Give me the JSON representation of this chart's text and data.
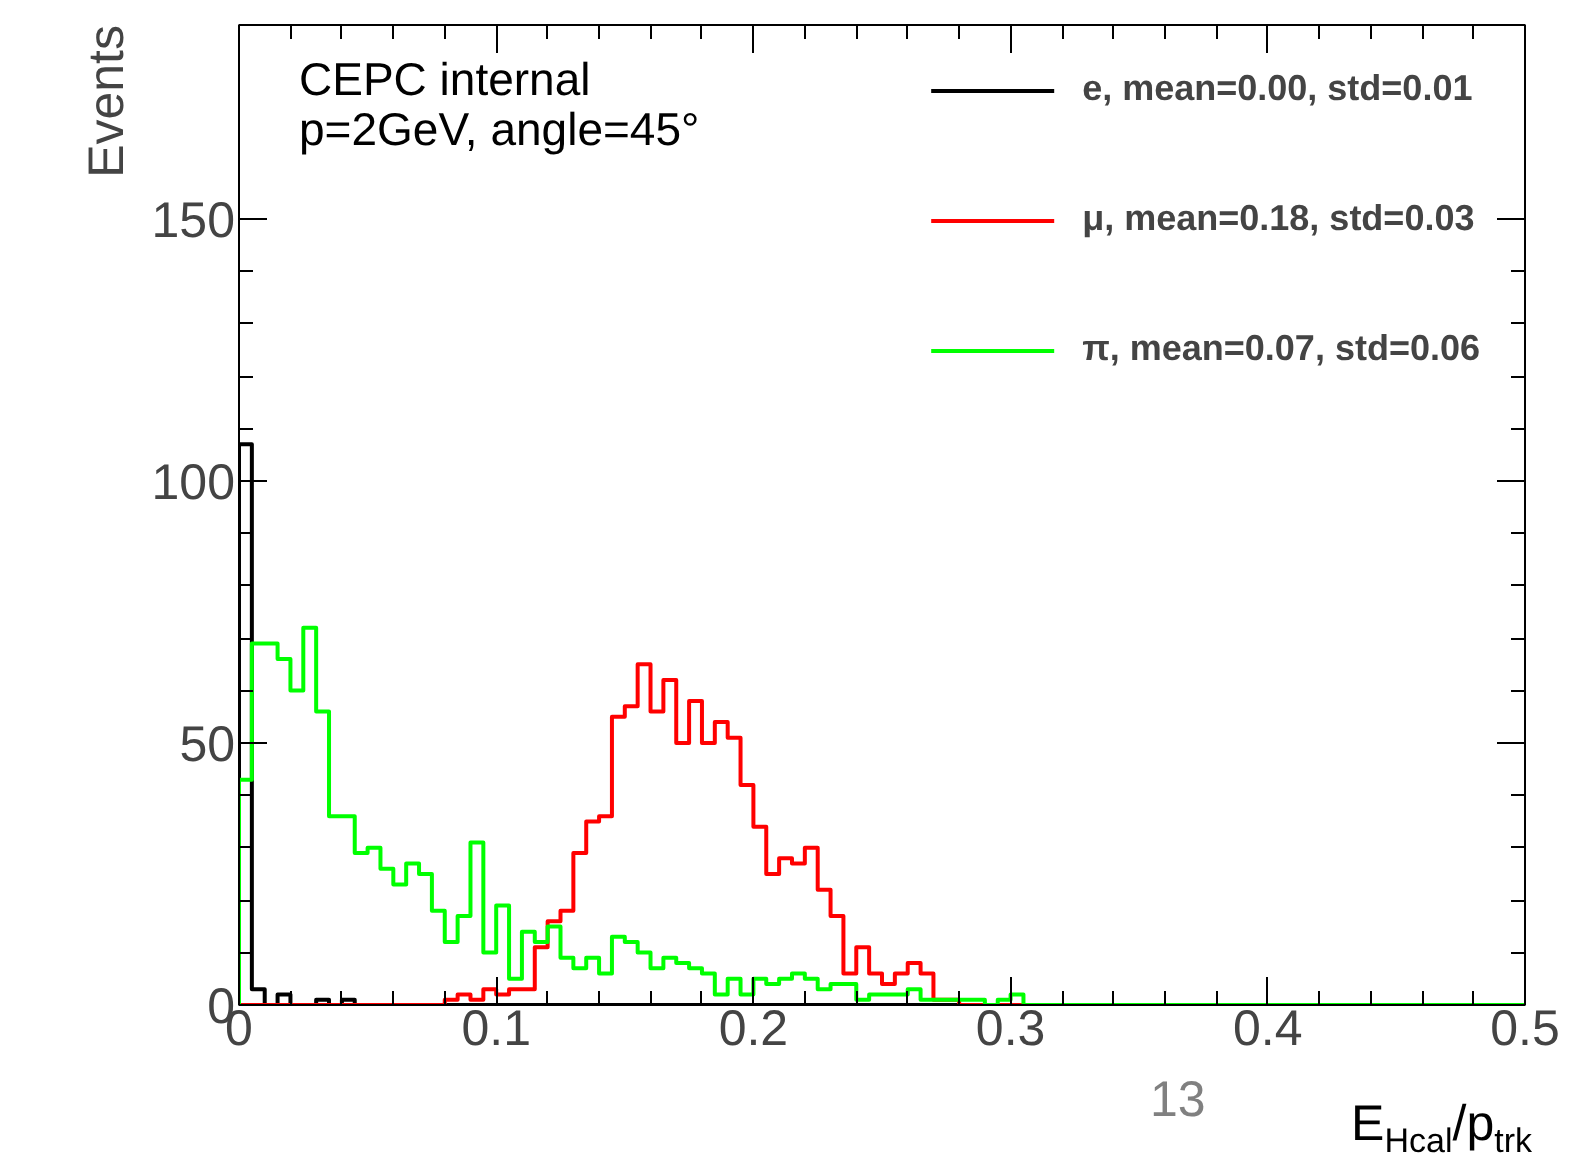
{
  "chart_data": {
    "type": "histogram",
    "xlabel": "E$_{Hcal}$/p$_{trk}$",
    "ylabel": "Events",
    "annotations": [
      "CEPC internal",
      "p=2GeV, angle=45°",
      "13"
    ],
    "bins": [
      0,
      0.005,
      0.01,
      0.015,
      0.02,
      0.025,
      0.03,
      0.035,
      0.04,
      0.045,
      0.05,
      0.055,
      0.06,
      0.065,
      0.07,
      0.075,
      0.08,
      0.085,
      0.09,
      0.095,
      0.1,
      0.105,
      0.11,
      0.115,
      0.12,
      0.125,
      0.13,
      0.135,
      0.14,
      0.145,
      0.15,
      0.155,
      0.16,
      0.165,
      0.17,
      0.175,
      0.18,
      0.185,
      0.19,
      0.195,
      0.2,
      0.205,
      0.21,
      0.215,
      0.22,
      0.225,
      0.23,
      0.235,
      0.24,
      0.245,
      0.25,
      0.255,
      0.26,
      0.265,
      0.27,
      0.275,
      0.28,
      0.285,
      0.29,
      0.295,
      0.3,
      0.305,
      0.31,
      0.315,
      0.32,
      0.325,
      0.33,
      0.335,
      0.34,
      0.345,
      0.35,
      0.355,
      0.36,
      0.365,
      0.37,
      0.375,
      0.38,
      0.385,
      0.39,
      0.395,
      0.4,
      0.405,
      0.41,
      0.415,
      0.42,
      0.425,
      0.43,
      0.435,
      0.44,
      0.445,
      0.45,
      0.455,
      0.46,
      0.465,
      0.47,
      0.475,
      0.48,
      0.485,
      0.49,
      0.495,
      0.5
    ],
    "series": [
      {
        "name": "e, mean=0.00, std=0.01",
        "color": "#000000",
        "values": [
          107,
          3,
          0,
          2,
          0,
          0,
          1,
          0,
          1,
          0,
          0,
          0,
          0,
          0,
          0,
          0,
          0,
          0,
          0,
          0,
          0,
          0,
          0,
          0,
          0,
          0,
          0,
          0,
          0,
          0,
          0,
          0,
          0,
          0,
          0,
          0,
          0,
          0,
          0,
          0,
          0,
          0,
          0,
          0,
          0,
          0,
          0,
          0,
          0,
          0,
          0,
          0,
          0,
          0,
          0,
          0,
          0,
          0,
          0,
          0,
          0,
          0,
          0,
          0,
          0,
          0,
          0,
          0,
          0,
          0,
          0,
          0,
          0,
          0,
          0,
          0,
          0,
          0,
          0,
          0,
          0,
          0,
          0,
          0,
          0,
          0,
          0,
          0,
          0,
          0,
          0,
          0,
          0,
          0,
          0,
          0,
          0,
          0,
          0,
          0
        ]
      },
      {
        "name": "μ, mean=0.18, std=0.03",
        "color": "#ff0000",
        "values": [
          0,
          0,
          0,
          0,
          0,
          0,
          0,
          0,
          0,
          0,
          0,
          0,
          0,
          0,
          0,
          0,
          1,
          2,
          1,
          3,
          2,
          3,
          3,
          11,
          16,
          18,
          29,
          35,
          36,
          55,
          57,
          65,
          56,
          62,
          50,
          58,
          50,
          54,
          51,
          42,
          34,
          25,
          28,
          27,
          30,
          22,
          17,
          6,
          11,
          6,
          4,
          6,
          8,
          6,
          1,
          1,
          0,
          0,
          0,
          0,
          0,
          0,
          0,
          0,
          0,
          0,
          0,
          0,
          0,
          0,
          0,
          0,
          0,
          0,
          0,
          0,
          0,
          0,
          0,
          0,
          0,
          0,
          0,
          0,
          0,
          0,
          0,
          0,
          0,
          0,
          0,
          0,
          0,
          0,
          0,
          0,
          0,
          0,
          0,
          0
        ]
      },
      {
        "name": "π, mean=0.07, std=0.06",
        "color": "#00ff00",
        "values": [
          43,
          69,
          69,
          66,
          60,
          72,
          56,
          36,
          36,
          29,
          30,
          26,
          23,
          27,
          25,
          18,
          12,
          17,
          31,
          10,
          19,
          5,
          14,
          12,
          15,
          9,
          7,
          9,
          6,
          13,
          12,
          10,
          7,
          9,
          8,
          7,
          6,
          2,
          5,
          2,
          5,
          4,
          5,
          6,
          5,
          3,
          4,
          4,
          1,
          2,
          2,
          2,
          3,
          1,
          1,
          1,
          1,
          1,
          0,
          1,
          2,
          0,
          0,
          0,
          0,
          0,
          0,
          0,
          0,
          0,
          0,
          0,
          0,
          0,
          0,
          0,
          0,
          0,
          0,
          0,
          0,
          0,
          0,
          0,
          0,
          0,
          0,
          0,
          0,
          0,
          0,
          0,
          0,
          0,
          0,
          0,
          0,
          0,
          0,
          0
        ]
      }
    ],
    "xlim": [
      0,
      0.5
    ],
    "ylim": [
      0,
      187
    ],
    "xticks": [
      0,
      0.1,
      0.2,
      0.3,
      0.4,
      0.5
    ],
    "yticks": [
      0,
      50,
      100,
      150
    ],
    "grid": false,
    "legend": "top right"
  }
}
